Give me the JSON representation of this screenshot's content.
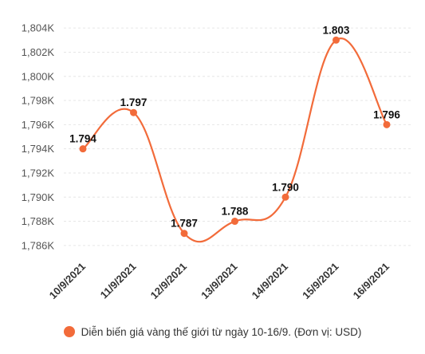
{
  "chart_data": {
    "type": "line",
    "categories": [
      "10/9/2021",
      "11/9/2021",
      "12/9/2021",
      "13/9/2021",
      "14/9/2021",
      "15/9/2021",
      "16/9/2021"
    ],
    "series": [
      {
        "name": "Diễn biến giá vàng thế giới từ ngày 10-16/9. (Đơn vị: USD)",
        "values": [
          1794,
          1797,
          1787,
          1788,
          1790,
          1803,
          1796
        ],
        "value_labels": [
          "1.794",
          "1.797",
          "1.787",
          "1.788",
          "1.790",
          "1.803",
          "1.796"
        ]
      }
    ],
    "ylim": [
      1785,
      1805
    ],
    "yticks": [
      1786,
      1788,
      1790,
      1792,
      1794,
      1796,
      1798,
      1800,
      1802,
      1804
    ],
    "ytick_labels": [
      "1,786K",
      "1,788K",
      "1,790K",
      "1,792K",
      "1,794K",
      "1,796K",
      "1,798K",
      "1,800K",
      "1,802K",
      "1,804K"
    ],
    "grid": true,
    "legend_position": "bottom",
    "line_color": "#f26b3a",
    "point_color": "#f26b3a"
  }
}
